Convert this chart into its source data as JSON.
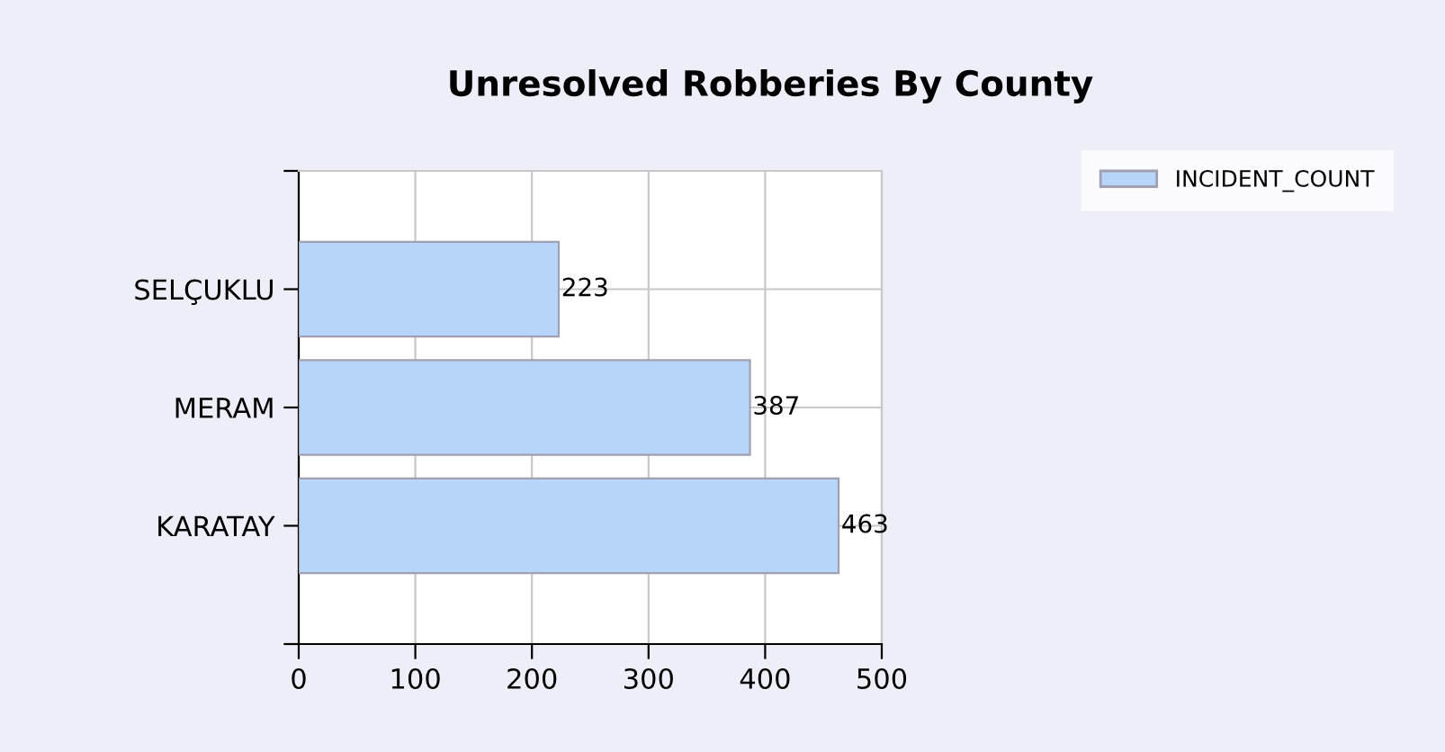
{
  "chart_data": {
    "type": "bar",
    "orientation": "horizontal",
    "title": "Unresolved Robberies By County",
    "categories": [
      "SELÇUKLU",
      "MERAM",
      "KARATAY"
    ],
    "series": [
      {
        "name": "INCIDENT_COUNT",
        "color": "#b7d5fb",
        "values": [
          223,
          387,
          463
        ]
      }
    ],
    "xlim": [
      0,
      500
    ],
    "xticks": [
      0,
      100,
      200,
      300,
      400,
      500
    ],
    "grid": true,
    "legend": "top right",
    "data_labels": true
  }
}
